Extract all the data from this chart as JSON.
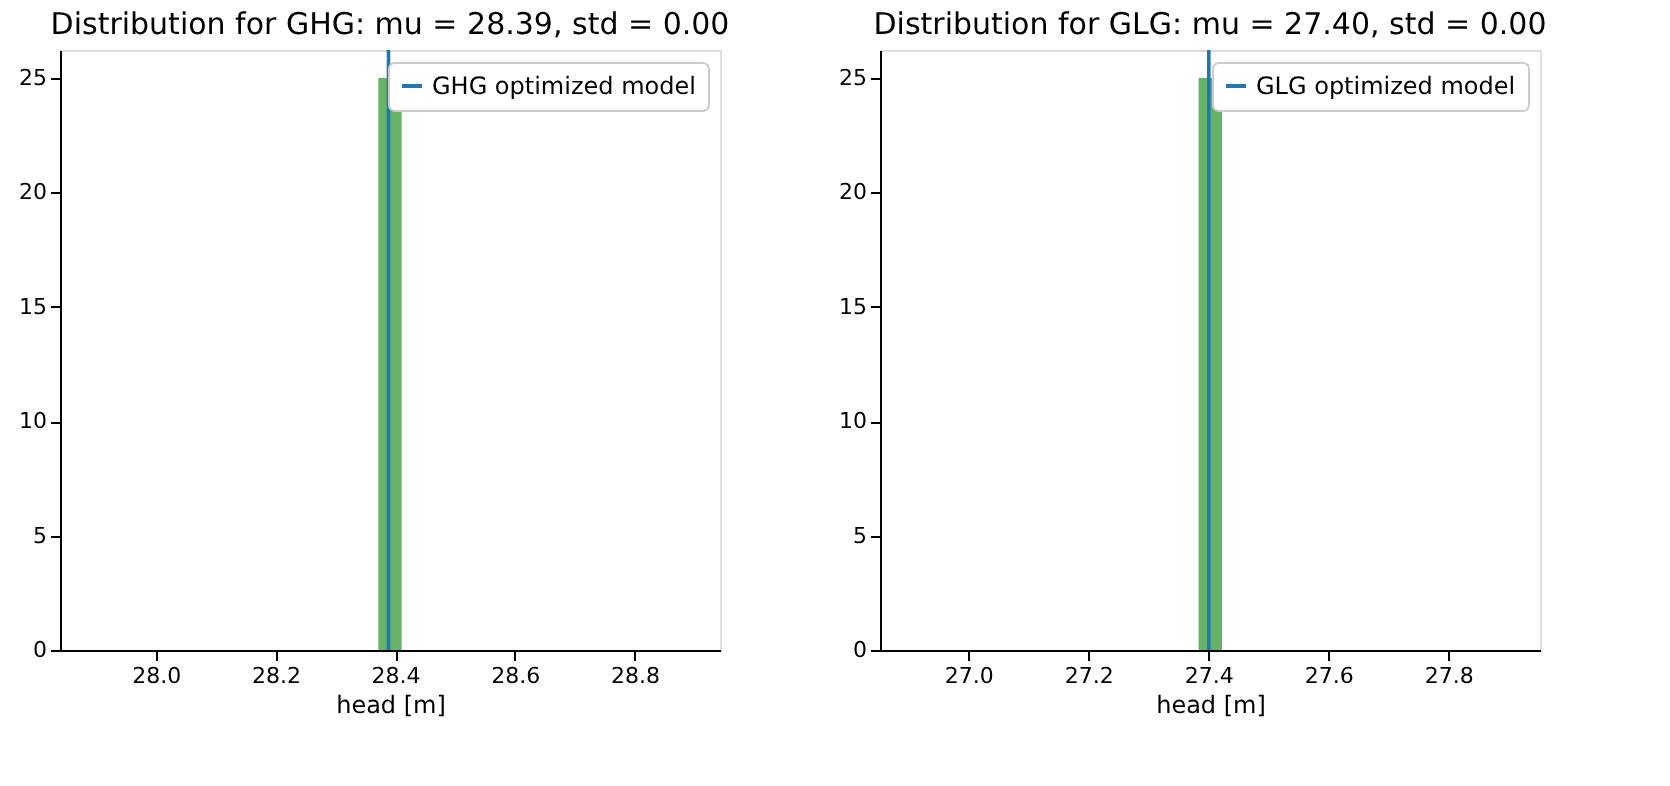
{
  "chart_data": [
    {
      "type": "histogram",
      "title": "Distribution for GHG: mu = 28.39,  std = 0.00",
      "xlabel": "head [m]",
      "bins": [
        28.372,
        28.411
      ],
      "values": [
        25
      ],
      "color": "#66b266",
      "xlim": [
        27.84,
        28.943
      ],
      "xticks": [
        {
          "value": 28.0,
          "label": "28.0"
        },
        28.2,
        28.4,
        28.6,
        28.8
      ],
      "ylim": [
        0,
        26.22
      ],
      "yticks": [
        0,
        5,
        10,
        15,
        20,
        25
      ],
      "ref_lines": [
        {
          "axis": "x",
          "value": 28.389,
          "label": "GHG optimized model",
          "color": "#1f77b4"
        }
      ],
      "legend": "top right"
    },
    {
      "type": "histogram",
      "title": "Distribution for GLG: mu = 27.40,  std = 0.00",
      "xlabel": "head [m]",
      "bins": [
        27.384,
        27.423
      ],
      "values": [
        25
      ],
      "color": "#66b266",
      "xlim": [
        26.853,
        27.953
      ],
      "xticks": [
        {
          "value": 27.0,
          "label": "27.0"
        },
        27.2,
        27.4,
        27.6,
        27.8
      ],
      "ylim": [
        0,
        26.22
      ],
      "yticks": [
        0,
        5,
        10,
        15,
        20,
        25
      ],
      "ref_lines": [
        {
          "axis": "x",
          "value": 27.401,
          "label": "GLG optimized model",
          "color": "#1f77b4"
        }
      ],
      "legend": "top right"
    }
  ]
}
